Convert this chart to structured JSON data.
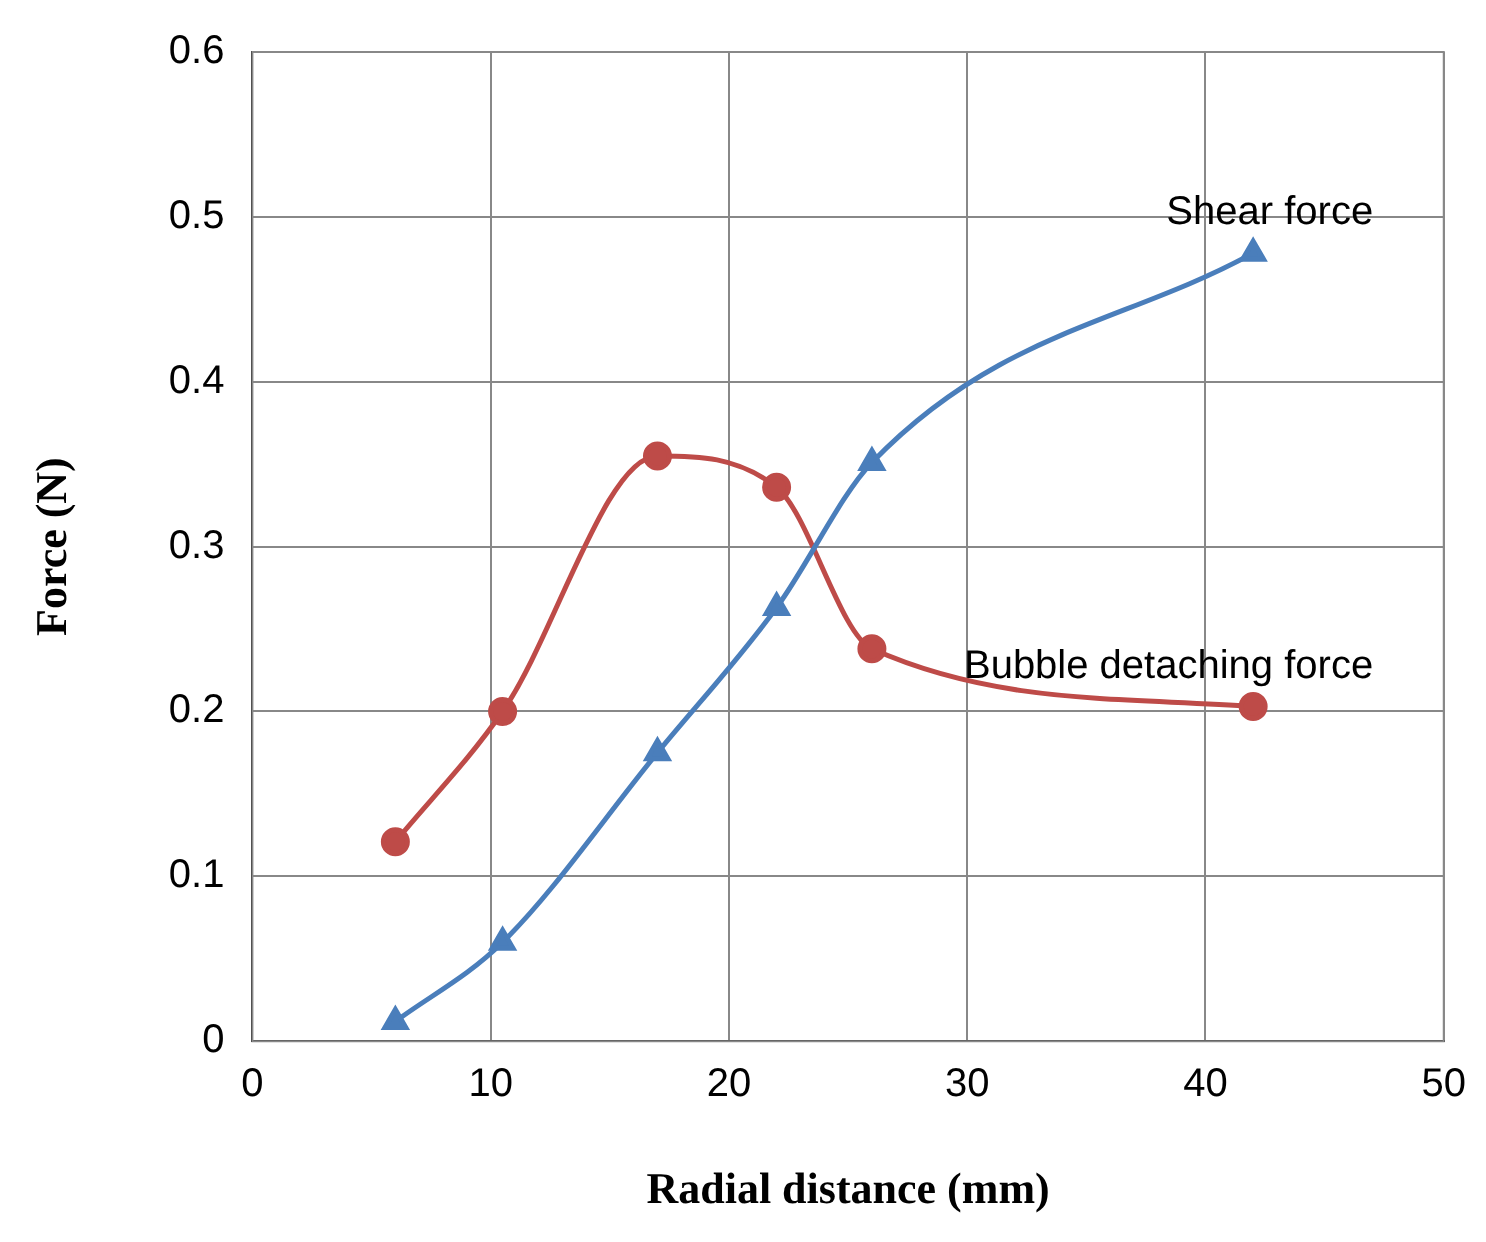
{
  "chart_data": {
    "type": "line",
    "xlabel": "Radial distance (mm)",
    "ylabel": "Force (N)",
    "xlim": [
      0,
      50
    ],
    "xticks": [
      0,
      10,
      20,
      30,
      40,
      50
    ],
    "ylim": [
      0,
      0.6
    ],
    "yticks": [
      0,
      0.1,
      0.2,
      0.3,
      0.4,
      0.5,
      0.6
    ],
    "grid": true,
    "legend": false,
    "series": [
      {
        "name": "Shear force",
        "color": "#4a7ebb",
        "marker": "triangle",
        "x": [
          6,
          10.5,
          17,
          22,
          26,
          42
        ],
        "values": [
          0.012,
          0.06,
          0.175,
          0.263,
          0.351,
          0.478
        ]
      },
      {
        "name": "Bubble detaching force",
        "color": "#be4b48",
        "marker": "circle",
        "x": [
          6,
          10.5,
          17,
          22,
          26,
          42
        ],
        "values": [
          0.121,
          0.2,
          0.355,
          0.336,
          0.238,
          0.203
        ]
      }
    ]
  }
}
